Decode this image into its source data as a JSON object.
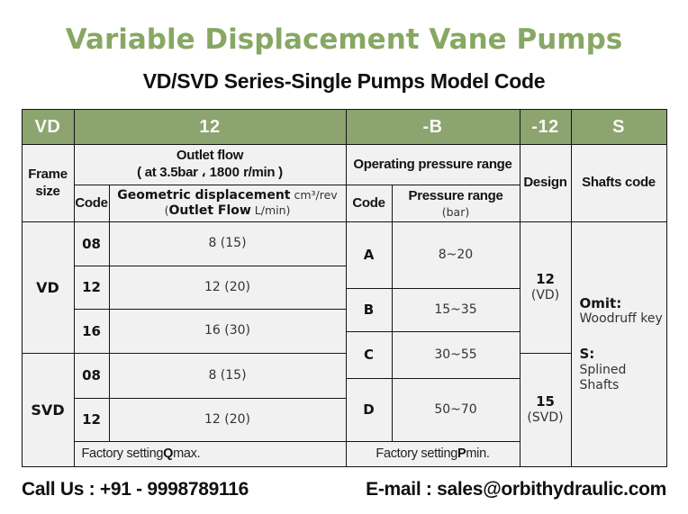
{
  "page": {
    "title": "Variable Displacement Vane Pumps",
    "subtitle": "VD/SVD Series-Single Pumps Model Code"
  },
  "colors": {
    "title_green": "#87a863",
    "header_green": "#8ca470",
    "cell_background": "#f1f1f1",
    "border": "#141414"
  },
  "model_code": {
    "frame": "VD",
    "displacement": "12",
    "pressure": "-B",
    "design": "-12",
    "shaft": "S"
  },
  "table": {
    "frame_size_label": {
      "line1": "Frame",
      "line2": "size"
    },
    "outlet_flow": {
      "line1": "Outlet flow",
      "line2": "( at 3.5bar ، 1800 r/min )"
    },
    "operating_pressure_label": "Operating pressure range",
    "code_label_left": "Code",
    "geo_displacement": {
      "bold1": "Geometric displacement",
      "unit1": " cm³/rev",
      "pre2": "(",
      "bold2": "Outlet Flow",
      "unit2": " L/min)"
    },
    "code_label_right": "Code",
    "pressure_range": {
      "line1": "Pressure range",
      "line2": "(bar)"
    },
    "design_label": "Design",
    "shafts_code_label": "Shafts code",
    "vd_label": "VD",
    "svd_label": "SVD",
    "vd_rows": [
      {
        "code": "08",
        "value": "8 (15)"
      },
      {
        "code": "12",
        "value": "12 (20)"
      },
      {
        "code": "16",
        "value": "16 (30)"
      }
    ],
    "svd_rows": [
      {
        "code": "08",
        "value": "8 (15)"
      },
      {
        "code": "12",
        "value": "12 (20)"
      }
    ],
    "pressure_rows": [
      {
        "code": "A",
        "range": "8~20"
      },
      {
        "code": "B",
        "range": "15~35"
      },
      {
        "code": "C",
        "range": "30~55"
      },
      {
        "code": "D",
        "range": "50~70"
      }
    ],
    "design_vd": {
      "num": "12",
      "name": "(VD)"
    },
    "design_svd": {
      "num": "15",
      "name": "(SVD)"
    },
    "shafts": {
      "omit_label": "Omit:",
      "omit_value": "Woodruff key",
      "s_label": "S:",
      "s_value": "Splined Shafts"
    },
    "factory_left": {
      "pre": "Factory setting ",
      "bold": "Q",
      "post": " max."
    },
    "factory_right": {
      "pre": "Factory setting ",
      "bold": "P",
      "post": " min."
    }
  },
  "footer": {
    "phone": "Call Us : +91 - 9998789116",
    "email": "E-mail : sales@orbithydraulic.com"
  }
}
